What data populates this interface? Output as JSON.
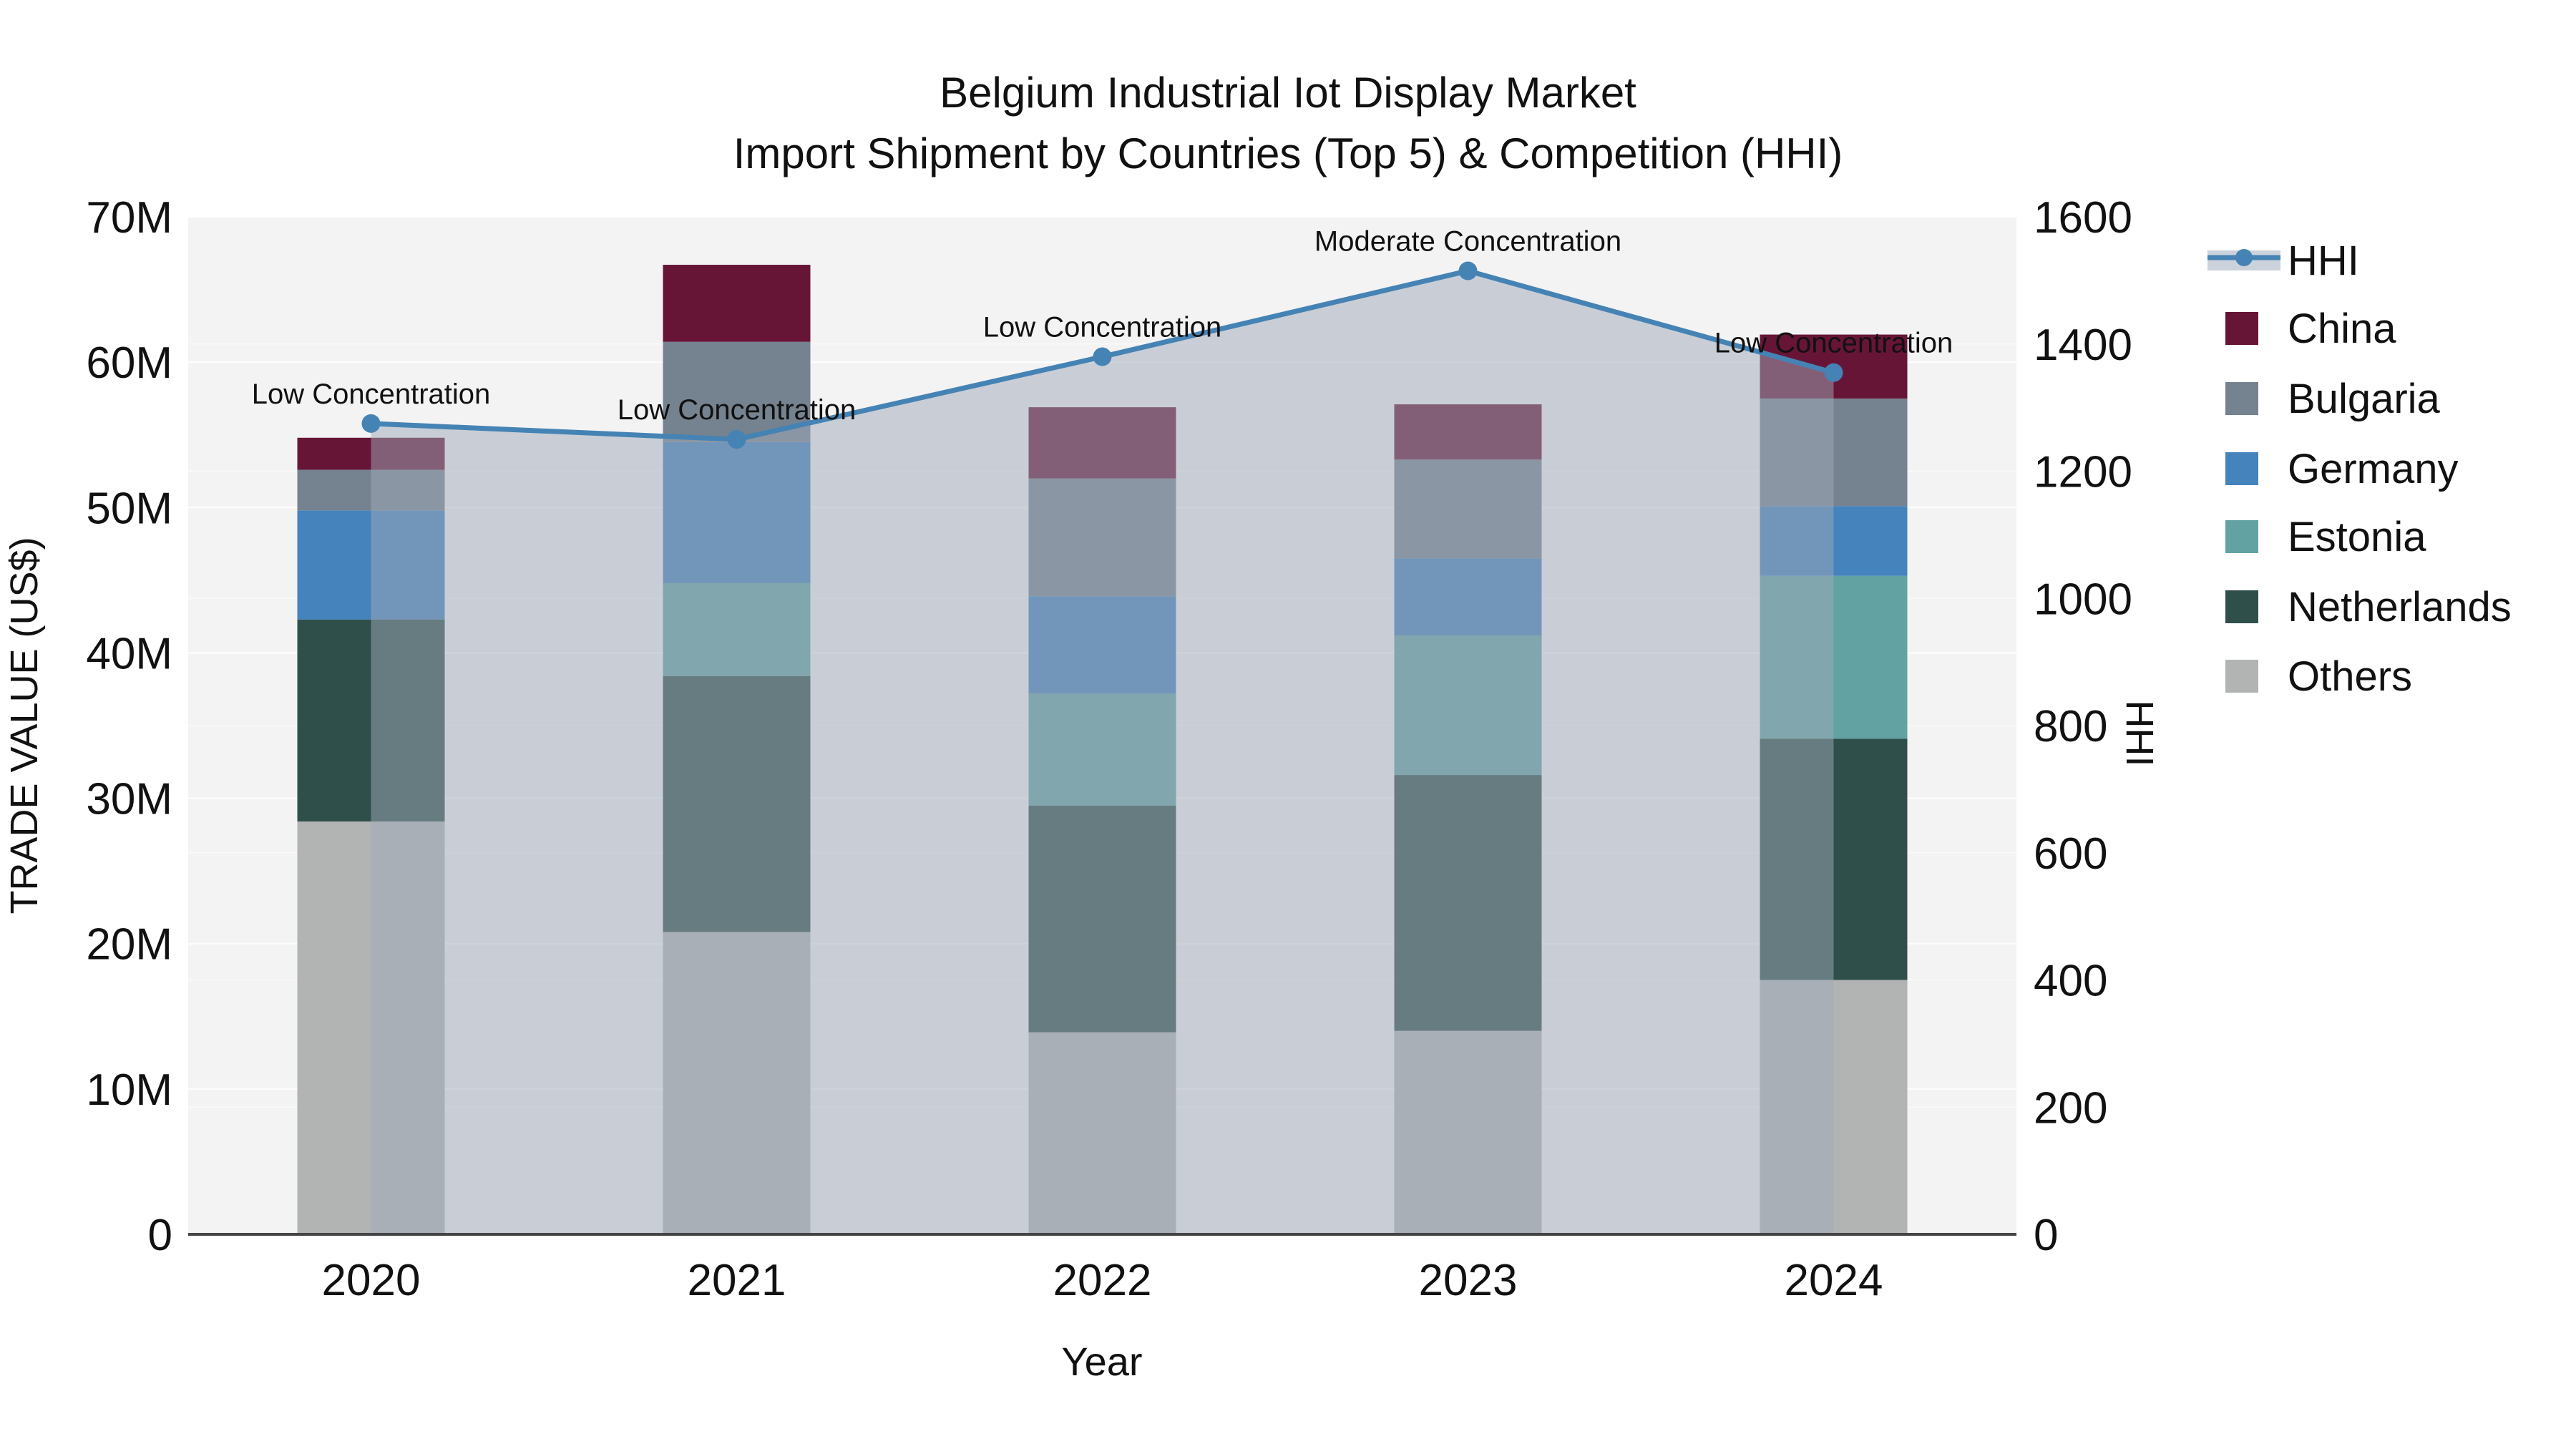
{
  "title": {
    "line1": "Belgium Industrial Iot Display Market",
    "line2": "Import Shipment by Countries (Top 5) & Competition (HHI)"
  },
  "axes": {
    "x": {
      "title": "Year",
      "ticks": [
        "2020",
        "2021",
        "2022",
        "2023",
        "2024"
      ]
    },
    "y_left": {
      "title": "TRADE VALUE (US$)",
      "ticks": [
        "0",
        "10M",
        "20M",
        "30M",
        "40M",
        "50M",
        "60M",
        "70M"
      ],
      "range_millions": [
        0,
        70
      ]
    },
    "y_right": {
      "title": "HHI",
      "ticks": [
        "0",
        "200",
        "400",
        "600",
        "800",
        "1000",
        "1200",
        "1400",
        "1600"
      ],
      "range": [
        0,
        1600
      ]
    }
  },
  "legend": {
    "items": [
      {
        "label": "HHI",
        "type": "line",
        "color": "#4583B4"
      },
      {
        "label": "China",
        "type": "swatch",
        "color": "#671537"
      },
      {
        "label": "Bulgaria",
        "type": "swatch",
        "color": "#75828F"
      },
      {
        "label": "Germany",
        "type": "swatch",
        "color": "#4483BC"
      },
      {
        "label": "Estonia",
        "type": "swatch",
        "color": "#63A2A2"
      },
      {
        "label": "Netherlands",
        "type": "swatch",
        "color": "#2F4F4B"
      },
      {
        "label": "Others",
        "type": "swatch",
        "color": "#B2B4B4"
      }
    ]
  },
  "chart_data": {
    "type": "bar",
    "subtype": "stacked-bars-with-secondary-axis-line",
    "title": "Belgium Industrial Iot Display Market / Import Shipment by Countries (Top 5) & Competition (HHI)",
    "categories": [
      "2020",
      "2021",
      "2022",
      "2023",
      "2024"
    ],
    "unit": "million US$",
    "stack_order": "bottom_to_top",
    "series": [
      {
        "name": "Others",
        "color": "#B2B4B4",
        "values": [
          28.4,
          20.8,
          13.9,
          14.0,
          17.5
        ]
      },
      {
        "name": "Netherlands",
        "color": "#2F4F4B",
        "values": [
          13.9,
          17.6,
          15.6,
          17.6,
          16.6
        ]
      },
      {
        "name": "Estonia",
        "color": "#63A2A2",
        "values": [
          0,
          6.4,
          7.7,
          9.6,
          11.2
        ]
      },
      {
        "name": "Germany",
        "color": "#4483BC",
        "values": [
          7.5,
          9.7,
          6.7,
          5.3,
          4.8
        ]
      },
      {
        "name": "Bulgaria",
        "color": "#75828F",
        "values": [
          2.8,
          6.9,
          8.1,
          6.8,
          7.4
        ]
      },
      {
        "name": "China",
        "color": "#671537",
        "values": [
          2.2,
          5.3,
          4.9,
          3.8,
          4.4
        ]
      }
    ],
    "totals_millions": [
      54.8,
      66.7,
      56.9,
      57.1,
      61.9
    ],
    "line_series": {
      "name": "HHI",
      "axis": "right",
      "color": "#4583B4",
      "area_fill": "rgba(160,170,184,0.5)",
      "values": [
        1275,
        1250,
        1380,
        1515,
        1355
      ]
    },
    "annotations": [
      "Low Concentration",
      "Low Concentration",
      "Low Concentration",
      "Moderate Concentration",
      "Low Concentration"
    ],
    "xlabel": "Year",
    "ylabel": "TRADE VALUE (US$)",
    "y2label": "HHI",
    "ylim_millions": [
      0,
      70
    ],
    "y2lim": [
      0,
      1600
    ],
    "grid": true,
    "legend_position": "right"
  },
  "colors": {
    "plot_bg": "#F3F3F4",
    "grid": "#FFFFFF",
    "axis_line": "#444444",
    "text": "#111111"
  }
}
